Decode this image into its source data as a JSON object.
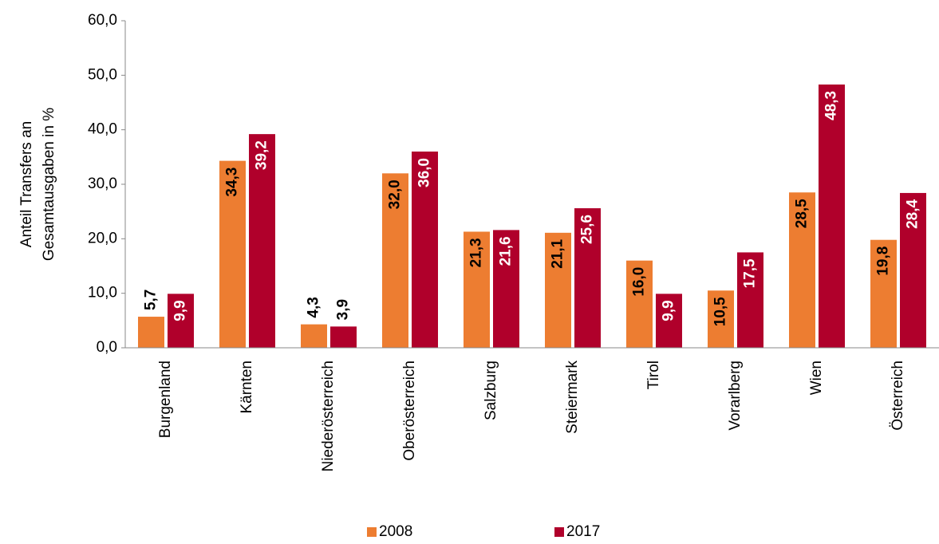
{
  "chart_data": {
    "type": "bar",
    "ylabel": [
      "Anteil Transfers an",
      "Gesamtausgaben in %"
    ],
    "categories": [
      "Burgenland",
      "Kärnten",
      "Niederösterreich",
      "Oberösterreich",
      "Salzburg",
      "Steiermark",
      "Tirol",
      "Vorarlberg",
      "Wien",
      "Österreich"
    ],
    "series": [
      {
        "name": "2008",
        "color": "#ed7d31",
        "label_color": "#000000",
        "values": [
          5.7,
          34.3,
          4.3,
          32.0,
          21.3,
          21.1,
          16.0,
          10.5,
          28.5,
          19.8
        ],
        "value_labels": [
          "5,7",
          "34,3",
          "4,3",
          "32,0",
          "21,3",
          "21,1",
          "16,0",
          "10,5",
          "28,5",
          "19,8"
        ]
      },
      {
        "name": "2017",
        "color": "#b0002b",
        "label_color": "#ffffff",
        "values": [
          9.9,
          39.2,
          3.9,
          36.0,
          21.6,
          25.6,
          9.9,
          17.5,
          48.3,
          28.4
        ],
        "value_labels": [
          "9,9",
          "39,2",
          "3,9",
          "36,0",
          "21,6",
          "25,6",
          "9,9",
          "17,5",
          "48,3",
          "28,4"
        ]
      }
    ],
    "ylim": [
      0,
      60
    ],
    "yticks": [
      {
        "value": 0,
        "label": "0,0"
      },
      {
        "value": 10,
        "label": "10,0"
      },
      {
        "value": 20,
        "label": "20,0"
      },
      {
        "value": 30,
        "label": "30,0"
      },
      {
        "value": 40,
        "label": "40,0"
      },
      {
        "value": 50,
        "label": "50,0"
      },
      {
        "value": 60,
        "label": "60,0"
      }
    ],
    "grid": false,
    "legend": "bottom"
  }
}
